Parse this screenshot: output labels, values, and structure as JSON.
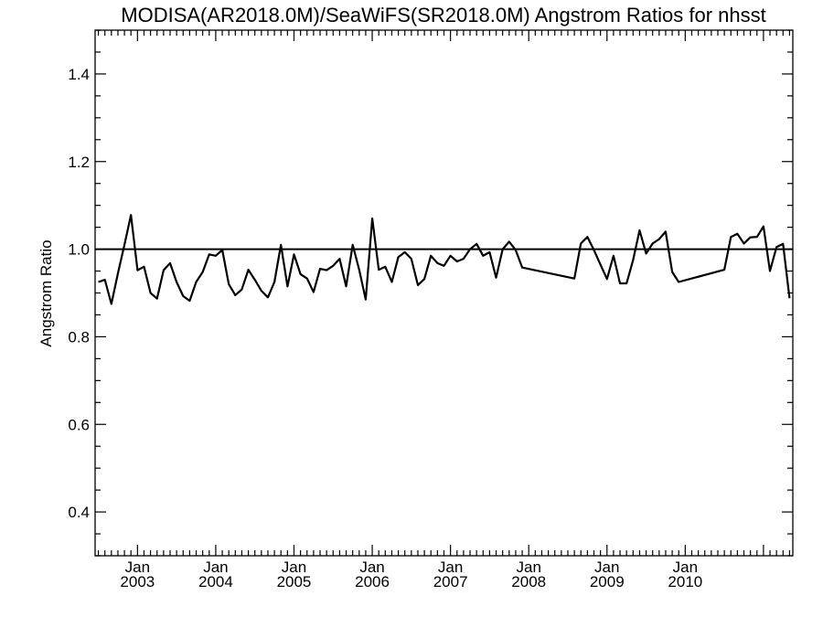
{
  "chart_data": {
    "type": "line",
    "title": "MODISA(AR2018.0M)/SeaWiFS(SR2018.0M)  Angstrom Ratios for nhsst",
    "xlabel": "",
    "ylabel": "Angstrom Ratio",
    "xlim": [
      "2002-07",
      "2010-12"
    ],
    "ylim": [
      0.3,
      1.5
    ],
    "yticks": [
      0.4,
      0.6,
      0.8,
      1.0,
      1.2,
      1.4
    ],
    "ytick_labels": [
      "0.4",
      "0.6",
      "0.8",
      "1.0",
      "1.2",
      "1.4"
    ],
    "xticks": [
      {
        "date": "2003-01",
        "month": "Jan",
        "year": "2003"
      },
      {
        "date": "2004-01",
        "month": "Jan",
        "year": "2004"
      },
      {
        "date": "2005-01",
        "month": "Jan",
        "year": "2005"
      },
      {
        "date": "2006-01",
        "month": "Jan",
        "year": "2006"
      },
      {
        "date": "2007-01",
        "month": "Jan",
        "year": "2007"
      },
      {
        "date": "2008-01",
        "month": "Jan",
        "year": "2008"
      },
      {
        "date": "2009-01",
        "month": "Jan",
        "year": "2009"
      },
      {
        "date": "2010-01",
        "month": "Jan",
        "year": "2010"
      }
    ],
    "reference_line": 1.0,
    "grid": false,
    "series": [
      {
        "color": "#000000",
        "points": [
          [
            "2002-07",
            0.925
          ],
          [
            "2002-08",
            0.93
          ],
          [
            "2002-09",
            0.875
          ],
          [
            "2002-10",
            0.945
          ],
          [
            "2002-11",
            1.01
          ],
          [
            "2002-12",
            1.078
          ],
          [
            "2003-01",
            0.952
          ],
          [
            "2003-02",
            0.96
          ],
          [
            "2003-03",
            0.9
          ],
          [
            "2003-04",
            0.887
          ],
          [
            "2003-05",
            0.952
          ],
          [
            "2003-06",
            0.968
          ],
          [
            "2003-07",
            0.925
          ],
          [
            "2003-08",
            0.893
          ],
          [
            "2003-09",
            0.882
          ],
          [
            "2003-10",
            0.925
          ],
          [
            "2003-11",
            0.948
          ],
          [
            "2003-12",
            0.988
          ],
          [
            "2004-01",
            0.985
          ],
          [
            "2004-02",
            0.998
          ],
          [
            "2004-03",
            0.92
          ],
          [
            "2004-04",
            0.895
          ],
          [
            "2004-05",
            0.908
          ],
          [
            "2004-06",
            0.953
          ],
          [
            "2004-07",
            0.93
          ],
          [
            "2004-08",
            0.905
          ],
          [
            "2004-09",
            0.89
          ],
          [
            "2004-10",
            0.925
          ],
          [
            "2004-11",
            1.01
          ],
          [
            "2004-12",
            0.915
          ],
          [
            "2005-01",
            0.988
          ],
          [
            "2005-02",
            0.943
          ],
          [
            "2005-03",
            0.933
          ],
          [
            "2005-04",
            0.902
          ],
          [
            "2005-05",
            0.955
          ],
          [
            "2005-06",
            0.952
          ],
          [
            "2005-07",
            0.962
          ],
          [
            "2005-08",
            0.978
          ],
          [
            "2005-09",
            0.915
          ],
          [
            "2005-10",
            1.01
          ],
          [
            "2005-11",
            0.953
          ],
          [
            "2005-12",
            0.885
          ],
          [
            "2006-01",
            1.07
          ],
          [
            "2006-02",
            0.953
          ],
          [
            "2006-03",
            0.96
          ],
          [
            "2006-04",
            0.925
          ],
          [
            "2006-05",
            0.982
          ],
          [
            "2006-06",
            0.993
          ],
          [
            "2006-07",
            0.978
          ],
          [
            "2006-08",
            0.918
          ],
          [
            "2006-09",
            0.932
          ],
          [
            "2006-10",
            0.985
          ],
          [
            "2006-11",
            0.968
          ],
          [
            "2006-12",
            0.962
          ],
          [
            "2007-01",
            0.985
          ],
          [
            "2007-02",
            0.972
          ],
          [
            "2007-03",
            0.978
          ],
          [
            "2007-04",
            1.0
          ],
          [
            "2007-05",
            1.012
          ],
          [
            "2007-06",
            0.985
          ],
          [
            "2007-07",
            0.993
          ],
          [
            "2007-08",
            0.935
          ],
          [
            "2007-09",
            1.0
          ],
          [
            "2007-10",
            1.017
          ],
          [
            "2007-11",
            0.998
          ],
          [
            "2007-12",
            0.958
          ],
          [
            "2008-08",
            0.933
          ],
          [
            "2008-09",
            1.013
          ],
          [
            "2008-10",
            1.028
          ],
          [
            "2008-11",
            0.998
          ],
          [
            "2008-12",
            0.965
          ],
          [
            "2009-01",
            0.932
          ],
          [
            "2009-02",
            0.985
          ],
          [
            "2009-03",
            0.922
          ],
          [
            "2009-04",
            0.922
          ],
          [
            "2009-05",
            0.975
          ],
          [
            "2009-06",
            1.043
          ],
          [
            "2009-07",
            0.99
          ],
          [
            "2009-08",
            1.013
          ],
          [
            "2009-09",
            1.023
          ],
          [
            "2009-10",
            1.04
          ],
          [
            "2009-11",
            0.948
          ],
          [
            "2009-12",
            0.925
          ],
          [
            "2010-07",
            0.953
          ],
          [
            "2010-08",
            1.028
          ],
          [
            "2010-09",
            1.035
          ],
          [
            "2010-10",
            1.013
          ],
          [
            "2010-11",
            1.027
          ],
          [
            "2010-12",
            1.028
          ],
          [
            "2011-01",
            1.052
          ],
          [
            "2011-02",
            0.95
          ],
          [
            "2011-03",
            1.005
          ],
          [
            "2011-04",
            1.012
          ],
          [
            "2011-05",
            0.888
          ]
        ]
      }
    ]
  }
}
